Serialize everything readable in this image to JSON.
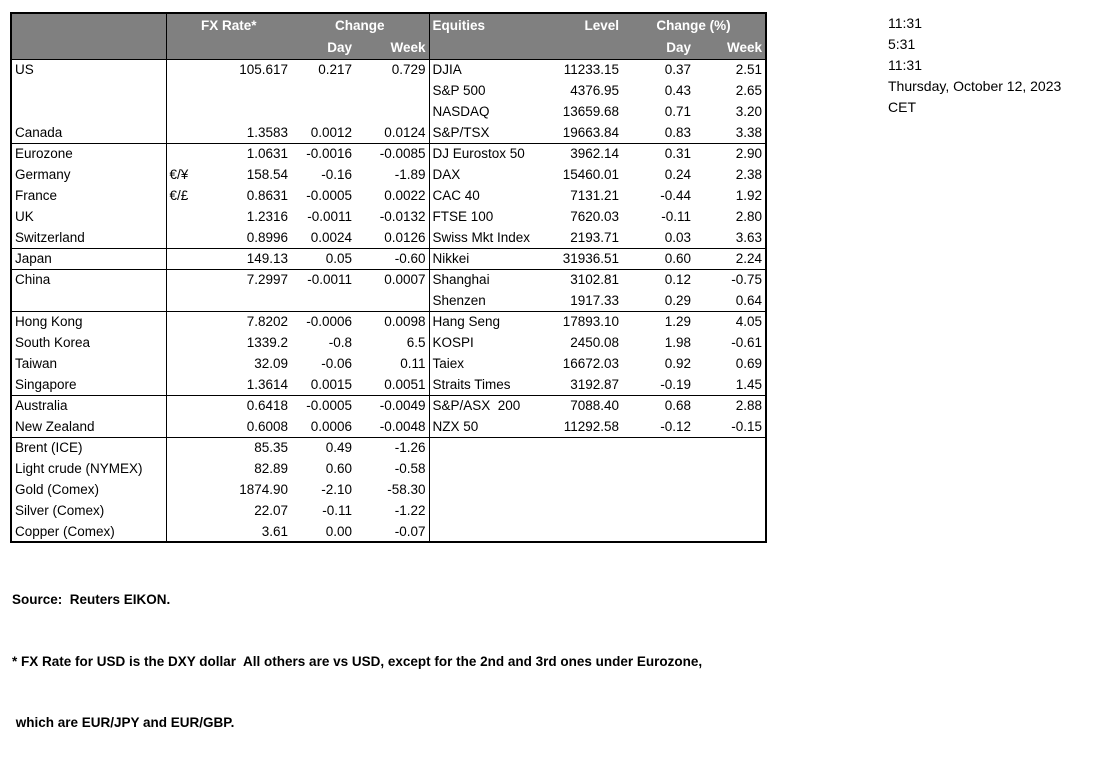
{
  "table": {
    "header": {
      "fx_rate": "FX Rate*",
      "change": "Change",
      "day": "Day",
      "week": "Week",
      "equities": "Equities",
      "level": "Level",
      "change_pct": "Change (%)"
    },
    "rows": [
      {
        "sep": false,
        "indent": false,
        "fx": "US",
        "pair": "",
        "rate": "105.617",
        "fxDay": "0.217",
        "fxWeek": "0.729",
        "eq": "DJIA",
        "level": "11233.15",
        "eqDay": "0.37",
        "eqWeek": "2.51"
      },
      {
        "sep": false,
        "indent": false,
        "fx": "",
        "pair": "",
        "rate": "",
        "fxDay": "",
        "fxWeek": "",
        "eq": "S&P 500",
        "level": "4376.95",
        "eqDay": "0.43",
        "eqWeek": "2.65"
      },
      {
        "sep": false,
        "indent": false,
        "fx": "",
        "pair": "",
        "rate": "",
        "fxDay": "",
        "fxWeek": "",
        "eq": "NASDAQ",
        "level": "13659.68",
        "eqDay": "0.71",
        "eqWeek": "3.20"
      },
      {
        "sep": false,
        "indent": false,
        "fx": "Canada",
        "pair": "",
        "rate": "1.3583",
        "fxDay": "0.0012",
        "fxWeek": "0.0124",
        "eq": "S&P/TSX",
        "level": "19663.84",
        "eqDay": "0.83",
        "eqWeek": "3.38"
      },
      {
        "sep": true,
        "indent": false,
        "fx": "Eurozone",
        "pair": "",
        "rate": "1.0631",
        "fxDay": "-0.0016",
        "fxWeek": "-0.0085",
        "eq": "DJ Eurostox 50",
        "level": "3962.14",
        "eqDay": "0.31",
        "eqWeek": "2.90"
      },
      {
        "sep": false,
        "indent": true,
        "fx": "Germany",
        "pair": "€/¥",
        "rate": "158.54",
        "fxDay": "-0.16",
        "fxWeek": "-1.89",
        "eq": "DAX",
        "level": "15460.01",
        "eqDay": "0.24",
        "eqWeek": "2.38"
      },
      {
        "sep": false,
        "indent": true,
        "fx": "France",
        "pair": "€/£",
        "rate": "0.8631",
        "fxDay": "-0.0005",
        "fxWeek": "0.0022",
        "eq": "CAC 40",
        "level": "7131.21",
        "eqDay": "-0.44",
        "eqWeek": "1.92"
      },
      {
        "sep": false,
        "indent": false,
        "fx": "UK",
        "pair": "",
        "rate": "1.2316",
        "fxDay": "-0.0011",
        "fxWeek": "-0.0132",
        "eq": "FTSE 100",
        "level": "7620.03",
        "eqDay": "-0.11",
        "eqWeek": "2.80"
      },
      {
        "sep": false,
        "indent": false,
        "fx": "Switzerland",
        "pair": "",
        "rate": "0.8996",
        "fxDay": "0.0024",
        "fxWeek": "0.0126",
        "eq": "Swiss Mkt Index",
        "level": "2193.71",
        "eqDay": "0.03",
        "eqWeek": "3.63"
      },
      {
        "sep": true,
        "indent": false,
        "fx": "Japan",
        "pair": "",
        "rate": "149.13",
        "fxDay": "0.05",
        "fxWeek": "-0.60",
        "eq": "Nikkei",
        "level": "31936.51",
        "eqDay": "0.60",
        "eqWeek": "2.24"
      },
      {
        "sep": true,
        "indent": false,
        "fx": "China",
        "pair": "",
        "rate": "7.2997",
        "fxDay": "-0.0011",
        "fxWeek": "0.0007",
        "eq": "Shanghai",
        "level": "3102.81",
        "eqDay": "0.12",
        "eqWeek": "-0.75"
      },
      {
        "sep": false,
        "indent": false,
        "fx": "",
        "pair": "",
        "rate": "",
        "fxDay": "",
        "fxWeek": "",
        "eq": "Shenzen",
        "level": "1917.33",
        "eqDay": "0.29",
        "eqWeek": "0.64"
      },
      {
        "sep": true,
        "indent": false,
        "fx": "Hong Kong",
        "pair": "",
        "rate": "7.8202",
        "fxDay": "-0.0006",
        "fxWeek": "0.0098",
        "eq": "Hang Seng",
        "level": "17893.10",
        "eqDay": "1.29",
        "eqWeek": "4.05"
      },
      {
        "sep": false,
        "indent": false,
        "fx": "South Korea",
        "pair": "",
        "rate": "1339.2",
        "fxDay": "-0.8",
        "fxWeek": "6.5",
        "eq": "KOSPI",
        "level": "2450.08",
        "eqDay": "1.98",
        "eqWeek": "-0.61"
      },
      {
        "sep": false,
        "indent": false,
        "fx": "Taiwan",
        "pair": "",
        "rate": "32.09",
        "fxDay": "-0.06",
        "fxWeek": "0.11",
        "eq": "Taiex",
        "level": "16672.03",
        "eqDay": "0.92",
        "eqWeek": "0.69"
      },
      {
        "sep": false,
        "indent": false,
        "fx": "Singapore",
        "pair": "",
        "rate": "1.3614",
        "fxDay": "0.0015",
        "fxWeek": "0.0051",
        "eq": "Straits Times",
        "level": "3192.87",
        "eqDay": "-0.19",
        "eqWeek": "1.45"
      },
      {
        "sep": true,
        "indent": false,
        "fx": "Australia",
        "pair": "",
        "rate": "0.6418",
        "fxDay": "-0.0005",
        "fxWeek": "-0.0049",
        "eq": "S&P/ASX  200",
        "level": "7088.40",
        "eqDay": "0.68",
        "eqWeek": "2.88"
      },
      {
        "sep": false,
        "indent": false,
        "fx": "New Zealand",
        "pair": "",
        "rate": "0.6008",
        "fxDay": "0.0006",
        "fxWeek": "-0.0048",
        "eq": "NZX 50",
        "level": "11292.58",
        "eqDay": "-0.12",
        "eqWeek": "-0.15"
      },
      {
        "sep": true,
        "indent": false,
        "fx": "Brent (ICE)",
        "pair": "",
        "rate": "85.35",
        "fxDay": "0.49",
        "fxWeek": "-1.26",
        "eq": "",
        "level": "",
        "eqDay": "",
        "eqWeek": ""
      },
      {
        "sep": false,
        "indent": false,
        "fx": "Light crude (NYMEX)",
        "pair": "",
        "rate": "82.89",
        "fxDay": "0.60",
        "fxWeek": "-0.58",
        "eq": "",
        "level": "",
        "eqDay": "",
        "eqWeek": ""
      },
      {
        "sep": false,
        "indent": false,
        "fx": "Gold (Comex)",
        "pair": "",
        "rate": "1874.90",
        "fxDay": "-2.10",
        "fxWeek": "-58.30",
        "eq": "",
        "level": "",
        "eqDay": "",
        "eqWeek": ""
      },
      {
        "sep": false,
        "indent": false,
        "fx": "Silver (Comex)",
        "pair": "",
        "rate": "22.07",
        "fxDay": "-0.11",
        "fxWeek": "-1.22",
        "eq": "",
        "level": "",
        "eqDay": "",
        "eqWeek": ""
      },
      {
        "sep": false,
        "indent": false,
        "fx": "Copper (Comex)",
        "pair": "",
        "rate": "3.61",
        "fxDay": "0.00",
        "fxWeek": "-0.07",
        "eq": "",
        "level": "",
        "eqDay": "",
        "eqWeek": ""
      }
    ]
  },
  "timestamps": [
    "11:31",
    "5:31",
    "11:31",
    "Thursday, October 12, 2023",
    "CET"
  ],
  "footnotes": {
    "source": "Source:  Reuters EIKON.",
    "note1": "* FX Rate for USD is the DXY dollar  All others are vs USD, except for the 2nd and 3rd ones under Eurozone,",
    "note2": " which are EUR/JPY and EUR/GBP."
  },
  "colors": {
    "header_bg": "#808080",
    "header_text": "#ffffff",
    "border": "#000000"
  }
}
